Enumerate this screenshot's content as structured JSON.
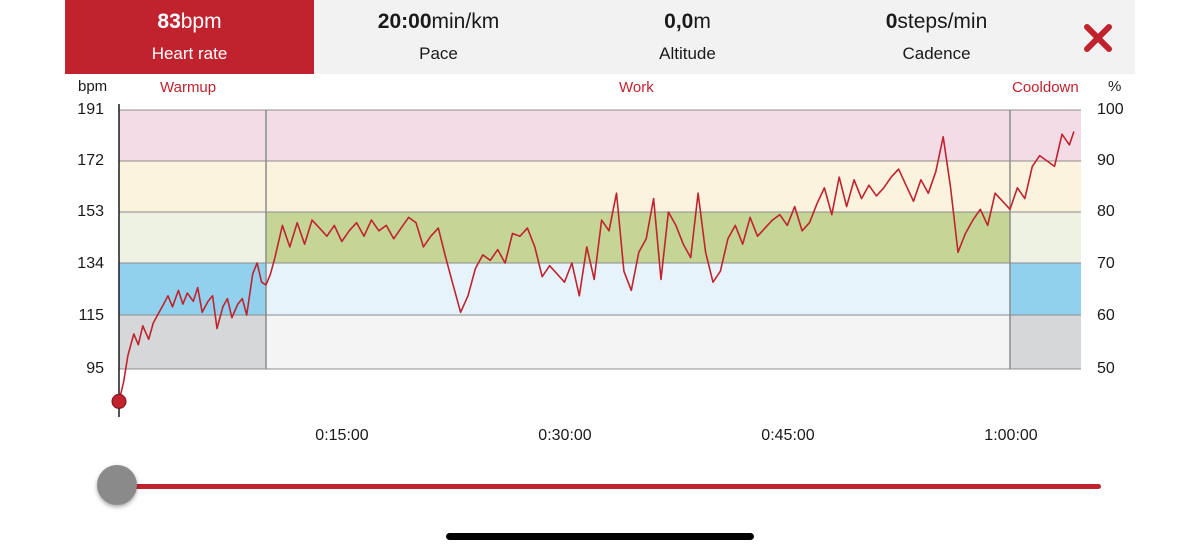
{
  "metrics": [
    {
      "value": "83",
      "unit": "bpm",
      "label": "Heart rate",
      "active": true
    },
    {
      "value": "20:00",
      "unit": "min/km",
      "label": "Pace",
      "active": false
    },
    {
      "value": "0,0",
      "unit": "m",
      "label": "Altitude",
      "active": false
    },
    {
      "value": "0",
      "unit": "steps/min",
      "label": "Cadence",
      "active": false
    }
  ],
  "close_icon": "close-x-icon",
  "colors": {
    "accent": "#c0232e",
    "zone_max": "#f4dce6",
    "zone_hard": "#fbf3de",
    "zone_moderate": "#c5d596",
    "zone_moderate_muted": "#edf2e3",
    "zone_light": "#92d1ee",
    "zone_light_muted": "#e6f3fa",
    "zone_verylight": "#d6d7d8",
    "zone_verylight_muted": "#f4f4f4"
  },
  "chart_data": {
    "type": "line",
    "phases": [
      {
        "name": "Warmup",
        "start": 0,
        "end": 9.9
      },
      {
        "name": "Work",
        "start": 9.9,
        "end": 60.0
      },
      {
        "name": "Cooldown",
        "start": 60.0,
        "end": 64.8
      }
    ],
    "y_left_label": "bpm",
    "y_right_label": "%",
    "y_left_ticks": [
      "191",
      "172",
      "153",
      "134",
      "115",
      "95"
    ],
    "y_right_ticks": [
      "100",
      "90",
      "80",
      "70",
      "60",
      "50"
    ],
    "x_ticks": [
      {
        "t": 15,
        "label": "0:15:00"
      },
      {
        "t": 30,
        "label": "0:30:00"
      },
      {
        "t": 45,
        "label": "0:45:00"
      },
      {
        "t": 60,
        "label": "1:00:00"
      }
    ],
    "xlim": [
      0,
      65
    ],
    "ylim": [
      83,
      191
    ],
    "zones": [
      {
        "name": "max",
        "from": 172,
        "to": 191
      },
      {
        "name": "hard",
        "from": 153,
        "to": 172
      },
      {
        "name": "moderate",
        "from": 134,
        "to": 153
      },
      {
        "name": "light",
        "from": 115,
        "to": 134
      },
      {
        "name": "verylight",
        "from": 95,
        "to": 115
      }
    ],
    "heart_rate": {
      "t": [
        0,
        0.3,
        0.6,
        1,
        1.3,
        1.6,
        2,
        2.3,
        2.6,
        3,
        3.3,
        3.6,
        4,
        4.3,
        4.6,
        5,
        5.3,
        5.6,
        6,
        6.3,
        6.6,
        7,
        7.3,
        7.6,
        8,
        8.3,
        8.6,
        9,
        9.3,
        9.6,
        9.9,
        10.2,
        10.5,
        11,
        11.5,
        12,
        12.5,
        13,
        13.5,
        14,
        14.5,
        15,
        15.5,
        16,
        16.5,
        17,
        17.5,
        18,
        18.5,
        19,
        19.5,
        20,
        20.5,
        21,
        21.5,
        22,
        22.5,
        23,
        23.5,
        24,
        24.5,
        25,
        25.5,
        26,
        26.5,
        27,
        27.5,
        28,
        28.5,
        29,
        29.5,
        30,
        30.5,
        31,
        31.5,
        32,
        32.5,
        33,
        33.5,
        34,
        34.5,
        35,
        35.5,
        36,
        36.5,
        37,
        37.5,
        38,
        38.5,
        39,
        39.5,
        40,
        40.5,
        41,
        41.5,
        42,
        42.5,
        43,
        43.5,
        44,
        44.5,
        45,
        45.5,
        46,
        46.5,
        47,
        47.5,
        48,
        48.5,
        49,
        49.5,
        50,
        50.5,
        51,
        51.5,
        52,
        52.5,
        53,
        53.5,
        54,
        54.5,
        55,
        55.5,
        56,
        56.5,
        57,
        57.5,
        58,
        58.5,
        59,
        59.5,
        60,
        60.5,
        61,
        61.5,
        62,
        62.5,
        63,
        63.5,
        64,
        64.3,
        64.8
      ],
      "bpm": [
        83,
        90,
        100,
        108,
        104,
        111,
        106,
        112,
        115,
        119,
        122,
        118,
        124,
        119,
        123,
        120,
        125,
        116,
        120,
        122,
        110,
        118,
        121,
        114,
        119,
        121,
        115,
        130,
        134,
        127,
        126,
        130,
        136,
        148,
        140,
        149,
        141,
        150,
        147,
        144,
        148,
        142,
        146,
        149,
        144,
        150,
        146,
        148,
        143,
        147,
        151,
        149,
        140,
        144,
        147,
        136,
        126,
        116,
        122,
        132,
        137,
        135,
        139,
        134,
        145,
        144,
        147,
        140,
        129,
        133,
        130,
        127,
        134,
        122,
        140,
        128,
        150,
        146,
        160,
        131,
        124,
        138,
        143,
        158,
        128,
        153,
        148,
        141,
        136,
        160,
        138,
        127,
        131,
        143,
        148,
        141,
        151,
        144,
        147,
        150,
        152,
        148,
        155,
        146,
        149,
        156,
        162,
        152,
        166,
        155,
        165,
        158,
        163,
        159,
        162,
        166,
        169,
        163,
        157,
        165,
        160,
        168,
        181,
        162,
        138,
        145,
        150,
        154,
        148,
        160,
        157,
        154,
        162,
        158,
        170,
        174,
        172,
        170,
        182,
        178,
        183
      ]
    }
  },
  "slider": {
    "position": 0
  }
}
